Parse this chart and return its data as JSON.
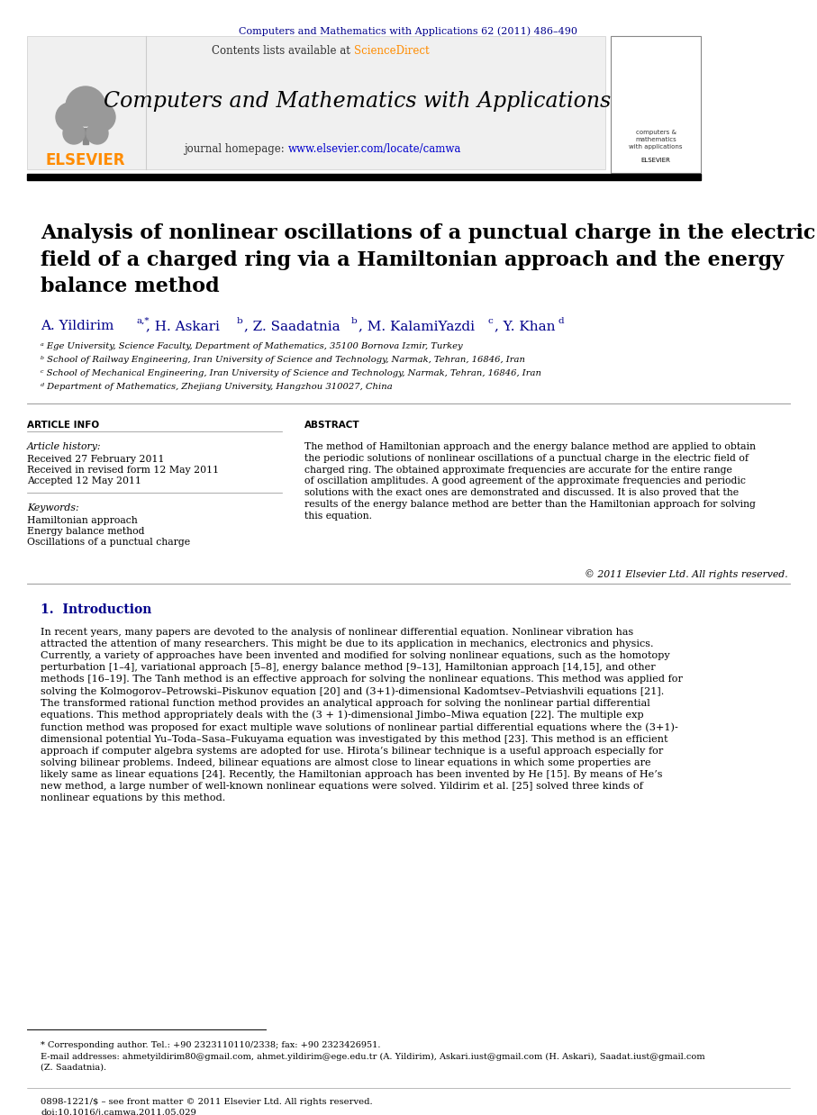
{
  "header_journal": "Computers and Mathematics with Applications 62 (2011) 486–490",
  "header_journal_color": "#00008B",
  "journal_name": "Computers and Mathematics with Applications",
  "contents_text": "Contents lists available at ",
  "sciencedirect_text": "ScienceDirect",
  "sciencedirect_color": "#FF8C00",
  "homepage_text": "journal homepage: ",
  "homepage_url": "www.elsevier.com/locate/camwa",
  "homepage_url_color": "#0000CD",
  "elsevier_color": "#FF8C00",
  "elsevier_text": "ELSEVIER",
  "title": "Analysis of nonlinear oscillations of a punctual charge in the electric\nfield of a charged ring via a Hamiltonian approach and the energy\nbalance method",
  "authors": "A. Yildirim",
  "authors_super": "a,*",
  "authors_rest": ", H. Askari",
  "authors_b": "b",
  "authors_rest2": ", Z. Saadatnia",
  "authors_b2": "b",
  "authors_rest3": ", M. KalamiYazdi",
  "authors_c": "c",
  "authors_rest4": ", Y. Khan",
  "authors_d": "d",
  "affil_a": "ᵃ Ege University, Science Faculty, Department of Mathematics, 35100 Bornova Izmir, Turkey",
  "affil_b": "ᵇ School of Railway Engineering, Iran University of Science and Technology, Narmak, Tehran, 16846, Iran",
  "affil_c": "ᶜ School of Mechanical Engineering, Iran University of Science and Technology, Narmak, Tehran, 16846, Iran",
  "affil_d": "ᵈ Department of Mathematics, Zhejiang University, Hangzhou 310027, China",
  "article_info_title": "ARTICLE INFO",
  "article_history_title": "Article history:",
  "received": "Received 27 February 2011",
  "revised": "Received in revised form 12 May 2011",
  "accepted": "Accepted 12 May 2011",
  "keywords_title": "Keywords:",
  "keyword1": "Hamiltonian approach",
  "keyword2": "Energy balance method",
  "keyword3": "Oscillations of a punctual charge",
  "abstract_title": "ABSTRACT",
  "abstract_text": "The method of Hamiltonian approach and the energy balance method are applied to obtain\nthe periodic solutions of nonlinear oscillations of a punctual charge in the electric field of\ncharged ring. The obtained approximate frequencies are accurate for the entire range\nof oscillation amplitudes. A good agreement of the approximate frequencies and periodic\nsolutions with the exact ones are demonstrated and discussed. It is also proved that the\nresults of the energy balance method are better than the Hamiltonian approach for solving\nthis equation.",
  "copyright": "© 2011 Elsevier Ltd. All rights reserved.",
  "section1_title": "1.  Introduction",
  "intro_text": "In recent years, many papers are devoted to the analysis of nonlinear differential equation. Nonlinear vibration has\nattracted the attention of many researchers. This might be due to its application in mechanics, electronics and physics.\nCurrently, a variety of approaches have been invented and modified for solving nonlinear equations, such as the homotopy\nperturbation [1–4], variational approach [5–8], energy balance method [9–13], Hamiltonian approach [14,15], and other\nmethods [16–19]. The Tanh method is an effective approach for solving the nonlinear equations. This method was applied for\nsolving the Kolmogorov–Petrowski–Piskunov equation [20] and (3+1)-dimensional Kadomtsev–Petviashvili equations [21].\nThe transformed rational function method provides an analytical approach for solving the nonlinear partial differential\nequations. This method appropriately deals with the (3 + 1)-dimensional Jimbo–Miwa equation [22]. The multiple exp\nfunction method was proposed for exact multiple wave solutions of nonlinear partial differential equations where the (3+1)-\ndimensional potential Yu–Toda–Sasa–Fukuyama equation was investigated by this method [23]. This method is an efficient\napproach if computer algebra systems are adopted for use. Hirota’s bilinear technique is a useful approach especially for\nsolving bilinear problems. Indeed, bilinear equations are almost close to linear equations in which some properties are\nlikely same as linear equations [24]. Recently, the Hamiltonian approach has been invented by He [15]. By means of He’s\nnew method, a large number of well-known nonlinear equations were solved. Yildirim et al. [25] solved three kinds of\nnonlinear equations by this method.",
  "footnote_star": "* Corresponding author. Tel.: +90 2323110110/2338; fax: +90 2323426951.",
  "footnote_email": "E-mail addresses: ahmetyildirim80@gmail.com, ahmet.yildirim@ege.edu.tr (A. Yildirim), Askari.iust@gmail.com (H. Askari), Saadat.iust@gmail.com",
  "footnote_email2": "(Z. Saadatnia).",
  "footer_issn": "0898-1221/$ – see front matter © 2011 Elsevier Ltd. All rights reserved.",
  "footer_doi": "doi:10.1016/j.camwa.2011.05.029",
  "bg_color": "#FFFFFF",
  "text_color": "#000000",
  "blue_color": "#00008B"
}
